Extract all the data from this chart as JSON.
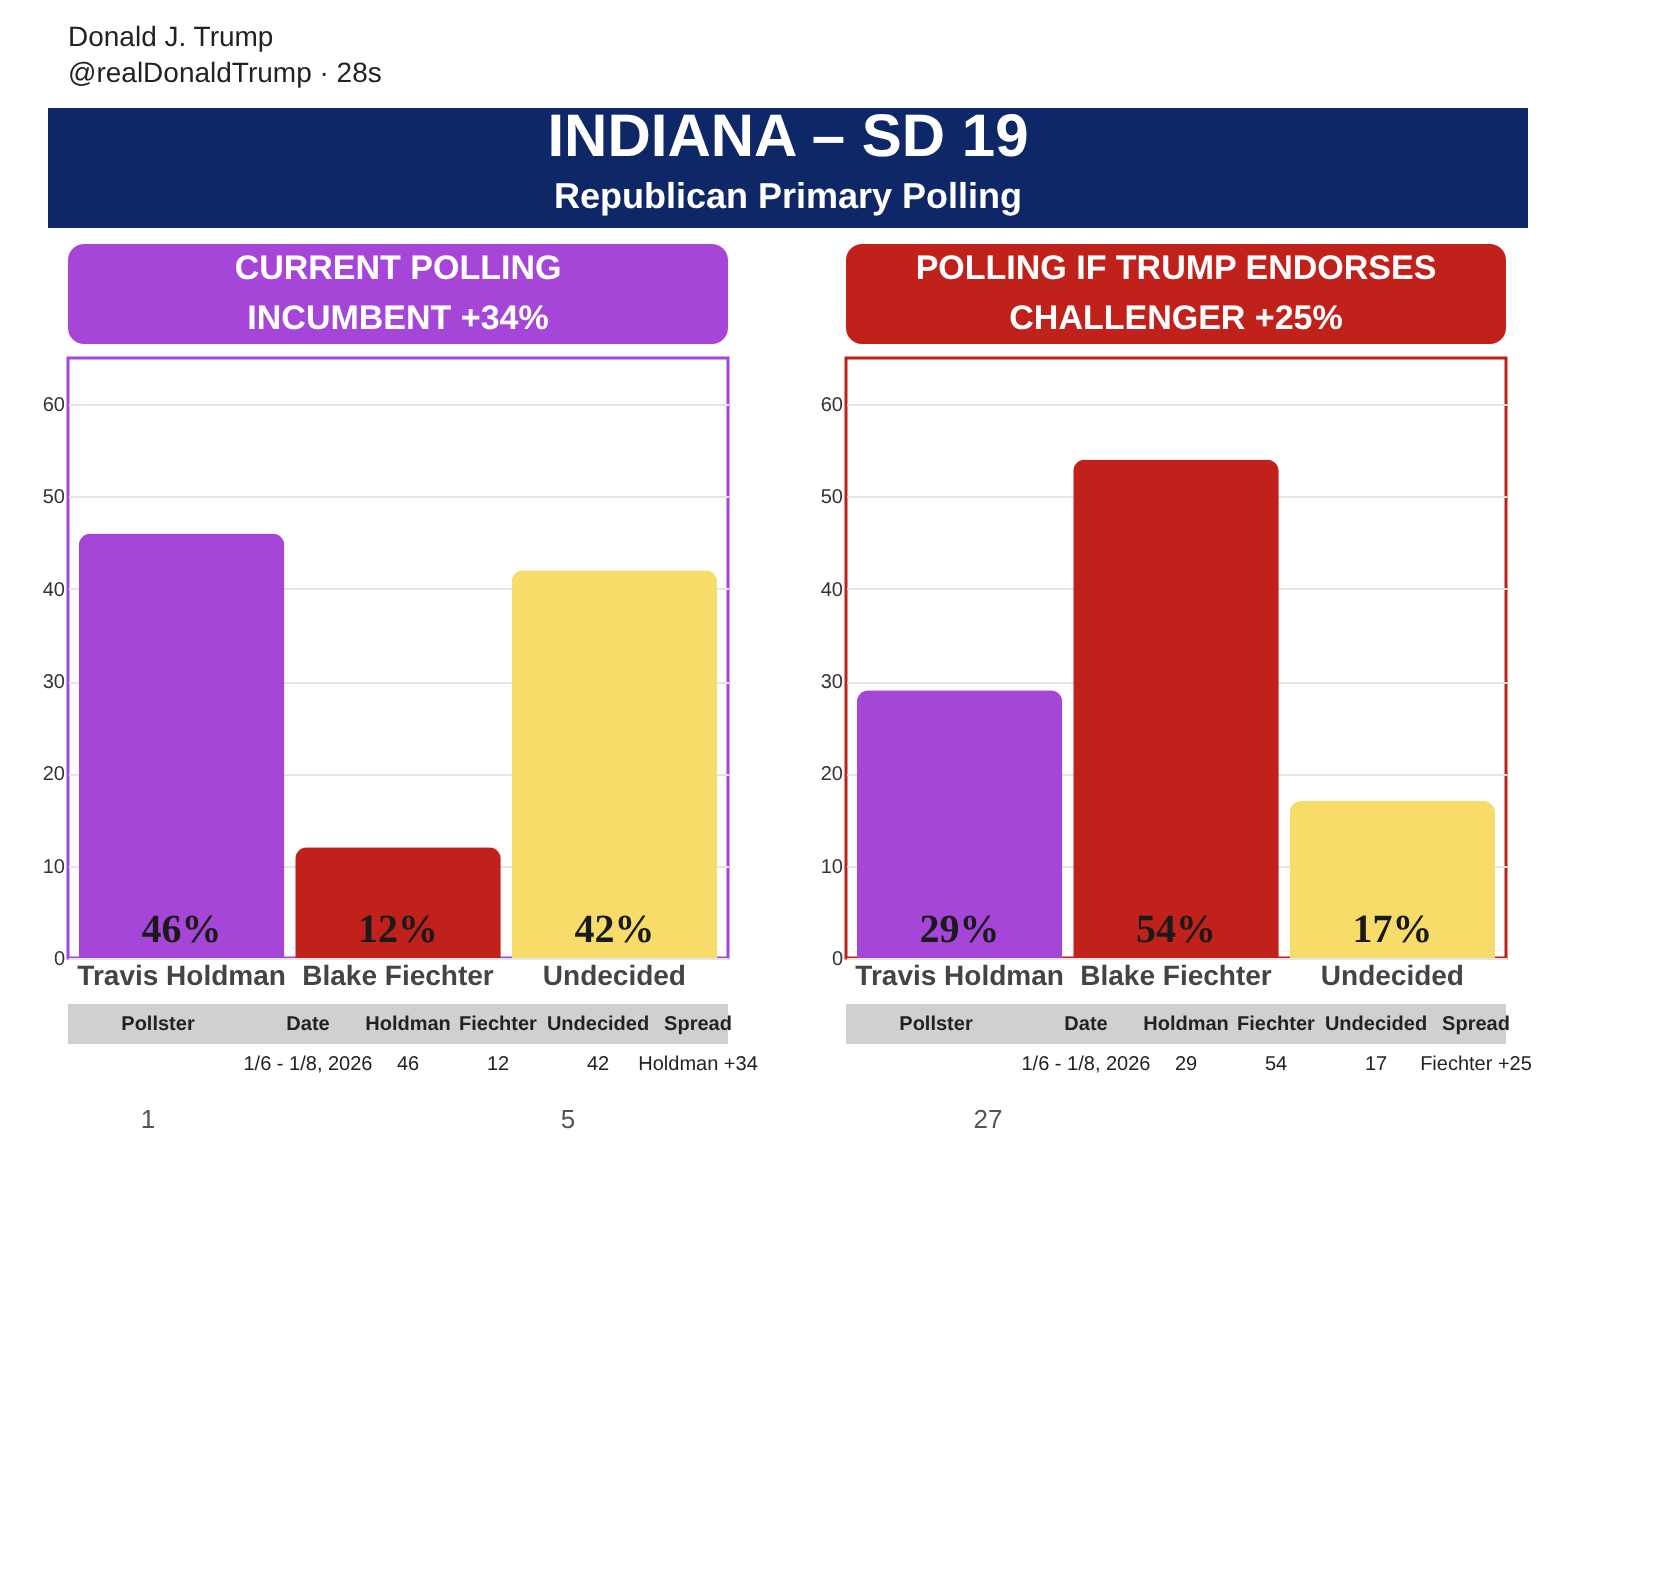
{
  "chart_data": [
    {
      "type": "bar",
      "title": "CURRENT POLLING",
      "subtitle": "INCUMBENT +34%",
      "categories": [
        "Travis Holdman",
        "Blake Fiechter",
        "Undecided"
      ],
      "values": [
        46,
        12,
        42
      ],
      "colors": [
        "#a646d9",
        "#c0211b",
        "#f7dc6a"
      ],
      "value_labels": [
        "46%",
        "12%",
        "42%"
      ],
      "ylim": [
        0,
        65
      ],
      "yticks": [
        0,
        10,
        20,
        30,
        40,
        50,
        60
      ],
      "grid": "y",
      "annotations": [
        "Donald J. Trump",
        "@realDonaldTrump · 28s",
        "1",
        "5",
        "27",
        "INDIANA – SD 19",
        "Republican Primary Polling",
        "Pollster",
        "Date",
        "Holdman",
        "Fiechter",
        "Undecided",
        "Spread",
        "1/6 - 1/8, 2026",
        "46",
        "12",
        "42",
        "Holdman +34"
      ]
    },
    {
      "type": "bar",
      "title": "POLLING IF TRUMP ENDORSES",
      "subtitle": "CHALLENGER +25%",
      "categories": [
        "Travis Holdman",
        "Blake Fiechter",
        "Undecided"
      ],
      "values": [
        29,
        54,
        17
      ],
      "colors": [
        "#a646d9",
        "#c0211b",
        "#f7dc6a"
      ],
      "value_labels": [
        "29%",
        "54%",
        "17%"
      ],
      "ylim": [
        0,
        65
      ],
      "yticks": [
        0,
        10,
        20,
        30,
        40,
        50,
        60
      ],
      "grid": "y",
      "annotations": [
        "Pollster",
        "Date",
        "Holdman",
        "Fiechter",
        "Undecided",
        "Spread",
        "1/6 - 1/8, 2026",
        "29",
        "54",
        "17",
        "Fiechter +25"
      ]
    }
  ]
}
